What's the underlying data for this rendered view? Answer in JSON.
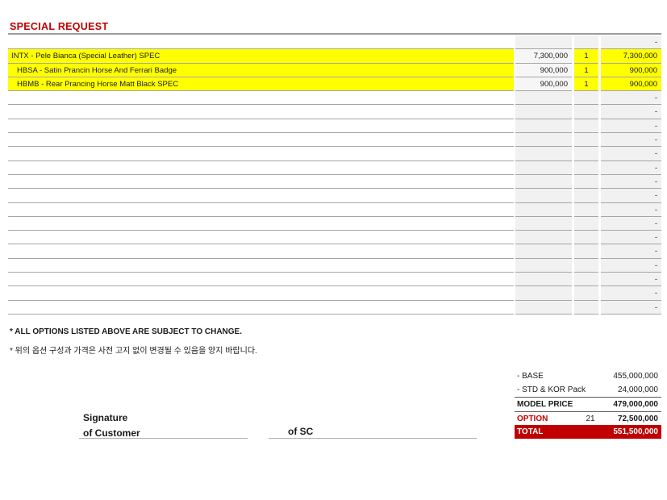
{
  "title": "SPECIAL REQUEST",
  "colors": {
    "accent_red": "#C00000",
    "highlight_yellow": "#FFFF00",
    "cell_gray": "#F1F1F1"
  },
  "options_table": {
    "rows": [
      {
        "label": "",
        "price": "",
        "qty": "",
        "total": "-",
        "highlight": false,
        "indent": false
      },
      {
        "label": "INTX - Pele Bianca (Special Leather) SPEC",
        "price": "7,300,000",
        "qty": "1",
        "total": "7,300,000",
        "highlight": true,
        "indent": false
      },
      {
        "label": "HBSA - Satin Prancin Horse And Ferrari Badge",
        "price": "900,000",
        "qty": "1",
        "total": "900,000",
        "highlight": true,
        "indent": true
      },
      {
        "label": "HBMB - Rear Prancing Horse Matt Black SPEC",
        "price": "900,000",
        "qty": "1",
        "total": "900,000",
        "highlight": true,
        "indent": true
      },
      {
        "label": "",
        "price": "",
        "qty": "",
        "total": "-",
        "highlight": false,
        "indent": false
      },
      {
        "label": "",
        "price": "",
        "qty": "",
        "total": "-",
        "highlight": false,
        "indent": false
      },
      {
        "label": "",
        "price": "",
        "qty": "",
        "total": "-",
        "highlight": false,
        "indent": false
      },
      {
        "label": "",
        "price": "",
        "qty": "",
        "total": "-",
        "highlight": false,
        "indent": false
      },
      {
        "label": "",
        "price": "",
        "qty": "",
        "total": "-",
        "highlight": false,
        "indent": false
      },
      {
        "label": "",
        "price": "",
        "qty": "",
        "total": "-",
        "highlight": false,
        "indent": false
      },
      {
        "label": "",
        "price": "",
        "qty": "",
        "total": "-",
        "highlight": false,
        "indent": false
      },
      {
        "label": "",
        "price": "",
        "qty": "",
        "total": "-",
        "highlight": false,
        "indent": false
      },
      {
        "label": "",
        "price": "",
        "qty": "",
        "total": "-",
        "highlight": false,
        "indent": false
      },
      {
        "label": "",
        "price": "",
        "qty": "",
        "total": "-",
        "highlight": false,
        "indent": false
      },
      {
        "label": "",
        "price": "",
        "qty": "",
        "total": "-",
        "highlight": false,
        "indent": false
      },
      {
        "label": "",
        "price": "",
        "qty": "",
        "total": "-",
        "highlight": false,
        "indent": false
      },
      {
        "label": "",
        "price": "",
        "qty": "",
        "total": "-",
        "highlight": false,
        "indent": false
      },
      {
        "label": "",
        "price": "",
        "qty": "",
        "total": "-",
        "highlight": false,
        "indent": false
      },
      {
        "label": "",
        "price": "",
        "qty": "",
        "total": "-",
        "highlight": false,
        "indent": false
      },
      {
        "label": "",
        "price": "",
        "qty": "",
        "total": "-",
        "highlight": false,
        "indent": false
      }
    ]
  },
  "notes": {
    "english": "* ALL OPTIONS LISTED ABOVE ARE SUBJECT TO CHANGE.",
    "korean": "* 위의 옵션 구성과 가격은 사전 고지 없이 변경될 수 있음을 양지 바랍니다."
  },
  "summary": {
    "rows": [
      {
        "label": "- BASE",
        "count": "",
        "value": "455,000,000",
        "style": "plain"
      },
      {
        "label": "- STD & KOR Pack",
        "count": "",
        "value": "24,000,000",
        "style": "plain"
      },
      {
        "label": "MODEL PRICE",
        "count": "",
        "value": "479,000,000",
        "style": "model"
      },
      {
        "label": "OPTION",
        "count": "21",
        "value": "72,500,000",
        "style": "option"
      },
      {
        "label": "TOTAL",
        "count": "",
        "value": "551,500,000",
        "style": "total"
      }
    ]
  },
  "signature": {
    "heading_line1": "Signature",
    "heading_line2": "of Customer",
    "sc_label": "of SC"
  }
}
